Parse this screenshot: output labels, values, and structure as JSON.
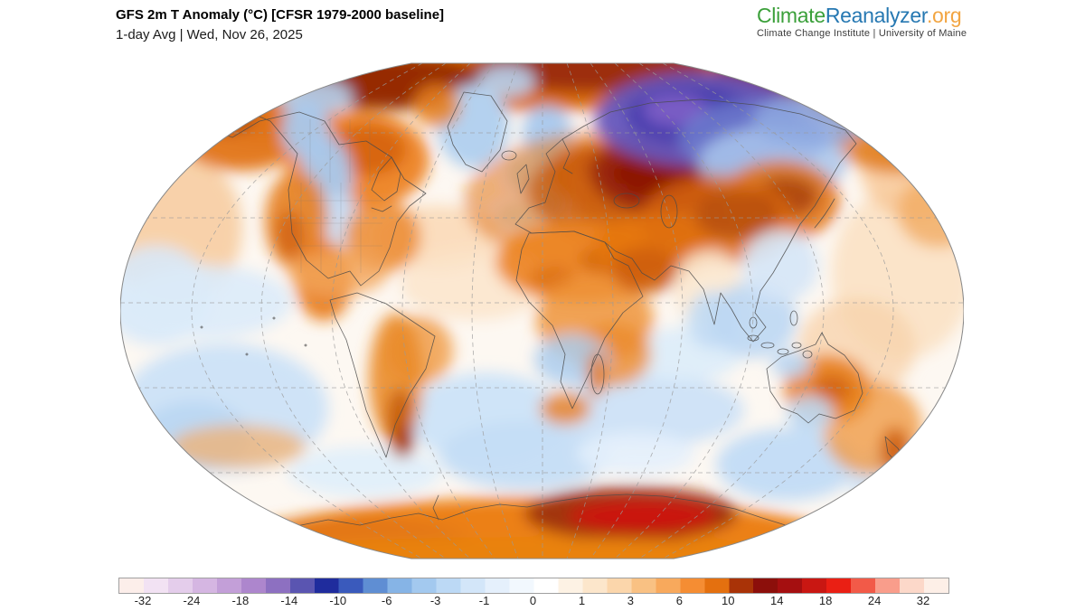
{
  "header": {
    "title": "GFS 2m T Anomaly (°C) [CFSR 1979-2000 baseline]",
    "subtitle": "1-day Avg | Wed, Nov 26, 2025"
  },
  "logo": {
    "part1": "Climate",
    "part2": "Reanalyzer",
    "part3": ".org",
    "tagline": "Climate Change Institute | University of Maine",
    "colors": {
      "part1": "#3ba03a",
      "part2": "#2678b2",
      "part3": "#f2a542",
      "tagline": "#3c3c3c"
    }
  },
  "legend": {
    "tick_labels": [
      "-32",
      "-24",
      "-18",
      "-14",
      "-10",
      "-6",
      "-3",
      "-1",
      "0",
      "1",
      "3",
      "6",
      "10",
      "14",
      "18",
      "24",
      "32"
    ],
    "band_colors": [
      "#fceeea",
      "#f2e2f3",
      "#e4cdeb",
      "#d5b6e2",
      "#c39fd8",
      "#ad86cd",
      "#8d70c1",
      "#5a55b1",
      "#1f2c9d",
      "#3a5abc",
      "#5f8ed3",
      "#86b4e6",
      "#a3c9ef",
      "#bcd9f5",
      "#d3e6f9",
      "#e5f0fc",
      "#f2f8fe",
      "#ffffff",
      "#fdf2e4",
      "#fce6cb",
      "#fbd6ab",
      "#f9c183",
      "#f8a95c",
      "#f58d33",
      "#e4700f",
      "#a93307",
      "#8c0f0b",
      "#a50f10",
      "#c91712",
      "#ea1f14",
      "#f25a48",
      "#f99d8b",
      "#fcd8c9",
      "#fdefe7"
    ],
    "border_color": "#a0a0a0"
  },
  "map": {
    "type": "world-temperature-anomaly-map",
    "ocean_base_color": "#fdf8f2",
    "graticule_color": "#9a9a9a",
    "coastline_color": "#4a4a4a",
    "outline_color": "#888888"
  }
}
